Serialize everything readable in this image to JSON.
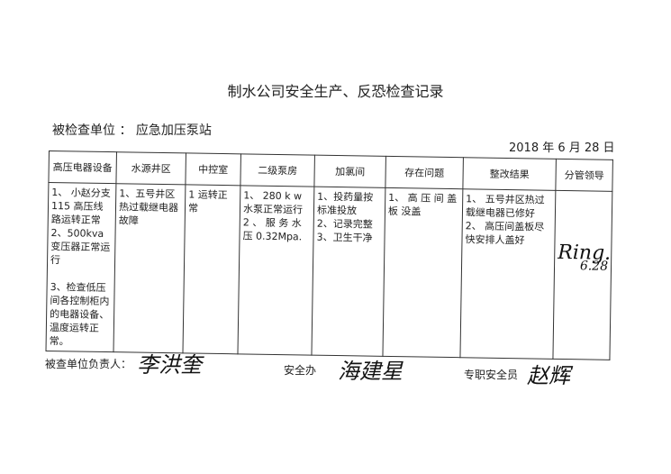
{
  "title": "制水公司安全生产、反恐检查记录",
  "inspected_unit_label": "被检查单位",
  "inspected_unit": "应急加压泵站",
  "date": "2018 年 6 月 28 日",
  "table": {
    "headers": [
      "高压电器设备",
      "水源井区",
      "中控室",
      "二级泵房",
      "加氯间",
      "存在问题",
      "整改结果",
      "分管领导"
    ],
    "cells": [
      "1、 小赵分支115 高压线路运转正常\n2、500kva 变压器正常运行\n\n3、检查低压间各控制柜内的电器设备、温度运转正常。",
      "1、五号井区热过载继电器故障",
      "1 运转正常",
      "1、 280 k w 水泵正常运行\n2 、 服 务 水 压 0.32Mpa.",
      "1、投药量按标准投放\n2、记录完整\n3、卫生干净",
      "1、 高 压 间 盖 板 没盖",
      "1、 五号井区热过载继电器已修好\n2、 高压间盖板尽快安排人盖好",
      ""
    ],
    "leader_signature": "Ring.",
    "leader_signature_date": "6.28"
  },
  "footer": {
    "responsible_label": "被查单位负责人：",
    "responsible_signature": "李洪奎",
    "safety_office_label": "安全办",
    "safety_office_signature": "海建星",
    "safety_officer_label": "专职安全员",
    "safety_officer_signature": "赵辉"
  }
}
